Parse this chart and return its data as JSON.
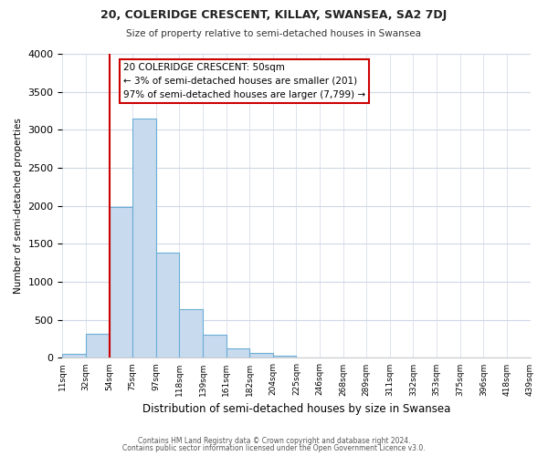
{
  "title": "20, COLERIDGE CRESCENT, KILLAY, SWANSEA, SA2 7DJ",
  "subtitle": "Size of property relative to semi-detached houses in Swansea",
  "xlabel": "Distribution of semi-detached houses by size in Swansea",
  "ylabel": "Number of semi-detached properties",
  "bin_labels": [
    "11sqm",
    "32sqm",
    "54sqm",
    "75sqm",
    "97sqm",
    "118sqm",
    "139sqm",
    "161sqm",
    "182sqm",
    "204sqm",
    "225sqm",
    "246sqm",
    "268sqm",
    "289sqm",
    "311sqm",
    "332sqm",
    "353sqm",
    "375sqm",
    "396sqm",
    "418sqm",
    "439sqm"
  ],
  "bar_values": [
    50,
    320,
    1980,
    3150,
    1390,
    640,
    310,
    130,
    65,
    35,
    5,
    3,
    2,
    1,
    1,
    0,
    0,
    0,
    0,
    0
  ],
  "bar_color": "#c8daee",
  "bar_edge_color": "#6baed6",
  "annotation_text_line1": "20 COLERIDGE CRESCENT: 50sqm",
  "annotation_text_line2": "← 3% of semi-detached houses are smaller (201)",
  "annotation_text_line3": "97% of semi-detached houses are larger (7,799) →",
  "red_line_color": "#cc0000",
  "ylim": [
    0,
    4000
  ],
  "yticks": [
    0,
    500,
    1000,
    1500,
    2000,
    2500,
    3000,
    3500,
    4000
  ],
  "footer_line1": "Contains HM Land Registry data © Crown copyright and database right 2024.",
  "footer_line2": "Contains public sector information licensed under the Open Government Licence v3.0.",
  "background_color": "#ffffff",
  "grid_color": "#d0d8e8"
}
